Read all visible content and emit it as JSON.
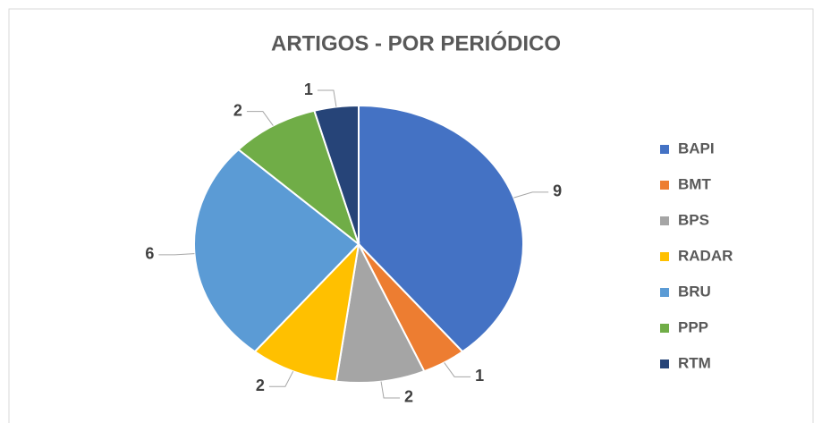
{
  "chart_data": {
    "type": "pie",
    "title": "ARTIGOS - POR PERIÓDICO",
    "categories": [
      "BAPI",
      "BMT",
      "BPS",
      "RADAR",
      "BRU",
      "PPP",
      "RTM"
    ],
    "values": [
      9,
      1,
      2,
      2,
      6,
      2,
      1
    ],
    "colors": [
      "#4472c4",
      "#ed7d31",
      "#a5a5a5",
      "#ffc000",
      "#5b9bd5",
      "#70ad47",
      "#264478"
    ],
    "legend": "right"
  }
}
